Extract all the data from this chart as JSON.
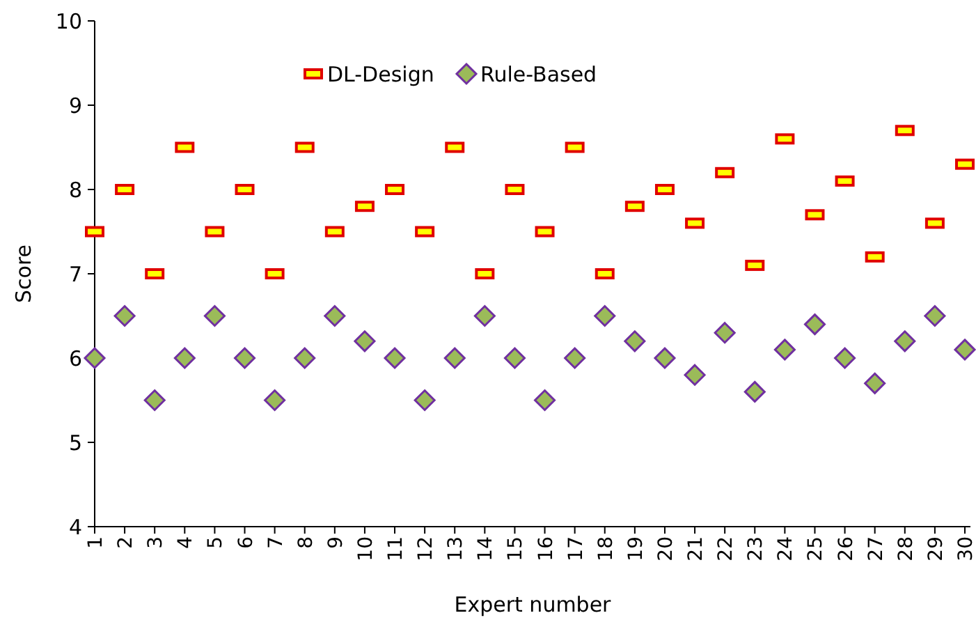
{
  "chart_data": {
    "type": "scatter",
    "xlabel": "Expert number",
    "ylabel": "Score",
    "categories": [
      "1",
      "2",
      "3",
      "4",
      "5",
      "6",
      "7",
      "8",
      "9",
      "10",
      "11",
      "12",
      "13",
      "14",
      "15",
      "16",
      "17",
      "18",
      "19",
      "20",
      "21",
      "22",
      "23",
      "24",
      "25",
      "26",
      "27",
      "28",
      "29",
      "30"
    ],
    "series": [
      {
        "name": "DL-Design",
        "color": "#ffff00",
        "marker": "square",
        "values": [
          7.5,
          8.0,
          7.0,
          8.5,
          7.5,
          8.0,
          7.0,
          8.5,
          7.5,
          7.8,
          8.0,
          7.5,
          8.5,
          7.0,
          8.0,
          7.5,
          8.5,
          7.0,
          7.8,
          8.0,
          7.6,
          8.2,
          7.1,
          8.6,
          7.7,
          8.1,
          7.2,
          8.7,
          7.6,
          8.3
        ]
      },
      {
        "name": "Rule-Based",
        "color": "#9bbb59",
        "marker": "diamond",
        "values": [
          6.0,
          6.5,
          5.5,
          6.0,
          6.5,
          6.0,
          5.5,
          6.0,
          6.5,
          6.2,
          6.0,
          5.5,
          6.0,
          6.5,
          6.0,
          5.5,
          6.0,
          6.5,
          6.2,
          6.0,
          5.8,
          6.3,
          5.6,
          6.1,
          6.4,
          6.0,
          5.7,
          6.2,
          6.5,
          6.1
        ]
      }
    ],
    "ylim": [
      4,
      10
    ],
    "yticks": [
      4,
      5,
      6,
      7,
      8,
      9,
      10
    ],
    "grid": false,
    "legend": "top"
  }
}
